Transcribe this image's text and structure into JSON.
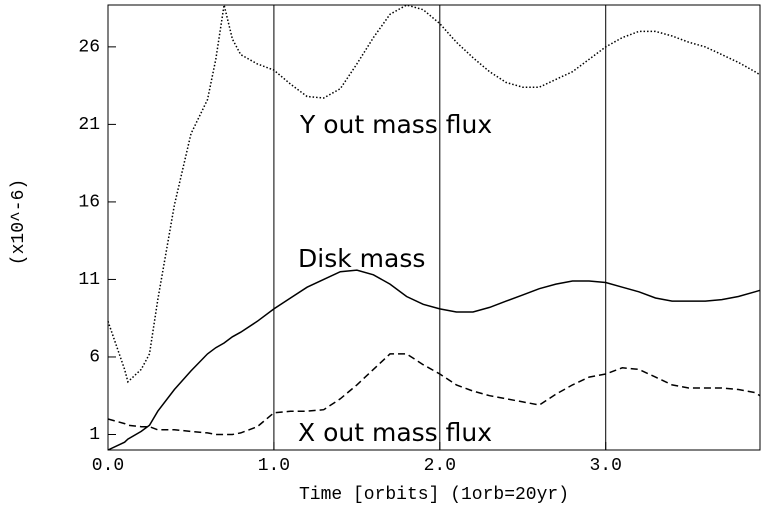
{
  "chart_data": {
    "type": "line",
    "xlabel": "Time [orbits] (1orb=20yr)",
    "ylabel": "(x10^-6)",
    "x": [
      0,
      0.1,
      0.12,
      0.2,
      0.25,
      0.3,
      0.4,
      0.5,
      0.6,
      0.65,
      0.7,
      0.75,
      0.8,
      0.9,
      1.0,
      1.1,
      1.2,
      1.3,
      1.4,
      1.5,
      1.6,
      1.7,
      1.8,
      1.9,
      2.0,
      2.1,
      2.2,
      2.3,
      2.4,
      2.5,
      2.6,
      2.7,
      2.8,
      2.9,
      3.0,
      3.1,
      3.2,
      3.3,
      3.4,
      3.5,
      3.6,
      3.7,
      3.8,
      3.9,
      3.93
    ],
    "series": [
      {
        "name": "Y out mass flux",
        "color": "#000000",
        "line_style": "dotted",
        "values": [
          8.3,
          5.2,
          4.4,
          5.2,
          6.2,
          9.7,
          15.8,
          20.4,
          22.6,
          25.2,
          28.7,
          26.5,
          25.5,
          24.9,
          24.5,
          23.6,
          22.8,
          22.7,
          23.3,
          24.9,
          26.6,
          28.1,
          28.7,
          28.4,
          27.5,
          26.3,
          25.3,
          24.4,
          23.7,
          23.4,
          23.4,
          23.9,
          24.4,
          25.2,
          26.0,
          26.6,
          27.0,
          27.0,
          26.7,
          26.3,
          26.0,
          25.5,
          25.0,
          24.4,
          24.2
        ]
      },
      {
        "name": "Disk mass",
        "color": "#000000",
        "line_style": "solid",
        "values": [
          0.0,
          0.5,
          0.7,
          1.2,
          1.6,
          2.5,
          3.9,
          5.1,
          6.2,
          6.6,
          6.9,
          7.3,
          7.6,
          8.3,
          9.1,
          9.8,
          10.5,
          11.0,
          11.5,
          11.6,
          11.3,
          10.7,
          9.9,
          9.4,
          9.1,
          8.9,
          8.9,
          9.2,
          9.6,
          10.0,
          10.4,
          10.7,
          10.9,
          10.9,
          10.8,
          10.5,
          10.2,
          9.8,
          9.6,
          9.6,
          9.6,
          9.7,
          9.9,
          10.2,
          10.3
        ]
      },
      {
        "name": "X out mass flux",
        "color": "#000000",
        "line_style": "dashed",
        "values": [
          2.0,
          1.7,
          1.6,
          1.5,
          1.5,
          1.3,
          1.3,
          1.2,
          1.1,
          1.0,
          1.0,
          1.0,
          1.1,
          1.5,
          2.4,
          2.5,
          2.5,
          2.6,
          3.3,
          4.2,
          5.2,
          6.2,
          6.2,
          5.5,
          4.9,
          4.2,
          3.8,
          3.5,
          3.3,
          3.1,
          2.9,
          3.6,
          4.2,
          4.7,
          4.9,
          5.3,
          5.2,
          4.7,
          4.2,
          4.0,
          4.0,
          4.0,
          3.9,
          3.7,
          3.5
        ]
      }
    ],
    "xlim": [
      0,
      3.93
    ],
    "ylim": [
      0,
      28.7
    ],
    "xticks": [
      {
        "value": 0,
        "label": "0.0"
      },
      {
        "value": 1,
        "label": "1.0"
      },
      {
        "value": 2,
        "label": "2.0"
      },
      {
        "value": 3,
        "label": "3.0"
      }
    ],
    "yticks": [
      1,
      6,
      11,
      16,
      21,
      26
    ],
    "grid": "x"
  }
}
